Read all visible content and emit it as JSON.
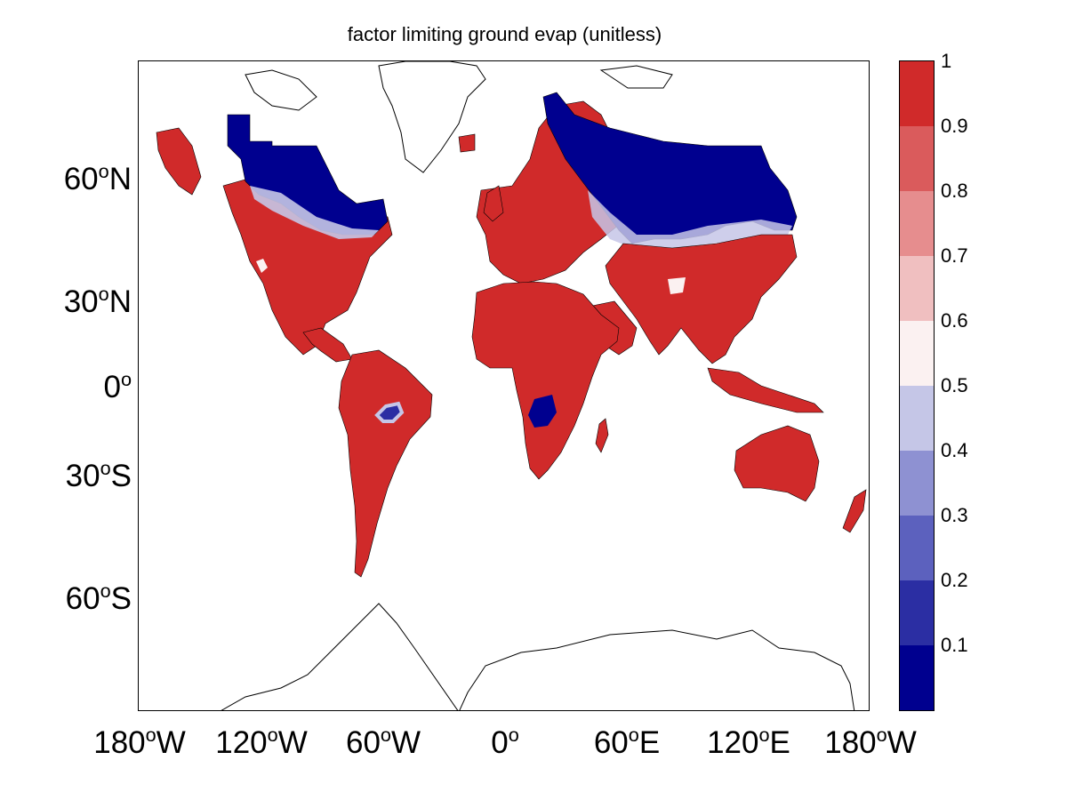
{
  "title": "factor limiting ground evap (unitless)",
  "latitude_labels": [
    {
      "value": 60,
      "deg": "60",
      "hemi": "N"
    },
    {
      "value": 30,
      "deg": "30",
      "hemi": "N"
    },
    {
      "value": 0,
      "deg": "0",
      "hemi": ""
    },
    {
      "value": -30,
      "deg": "30",
      "hemi": "S"
    },
    {
      "value": -60,
      "deg": "60",
      "hemi": "S"
    }
  ],
  "longitude_labels": [
    {
      "value": -180,
      "deg": "180",
      "hemi": "W"
    },
    {
      "value": -120,
      "deg": "120",
      "hemi": "W"
    },
    {
      "value": -60,
      "deg": "60",
      "hemi": "W"
    },
    {
      "value": 0,
      "deg": "0",
      "hemi": ""
    },
    {
      "value": 60,
      "deg": "60",
      "hemi": "E"
    },
    {
      "value": 120,
      "deg": "120",
      "hemi": "E"
    },
    {
      "value": 180,
      "deg": "180",
      "hemi": "W"
    }
  ],
  "colorbar": {
    "range": [
      0,
      1
    ],
    "tick_labels": [
      "1",
      "0.9",
      "0.8",
      "0.7",
      "0.6",
      "0.5",
      "0.4",
      "0.3",
      "0.2",
      "0.1"
    ],
    "levels": [
      {
        "min": 0.0,
        "max": 0.1,
        "color": "#00008f"
      },
      {
        "min": 0.1,
        "max": 0.2,
        "color": "#2b2ea3"
      },
      {
        "min": 0.2,
        "max": 0.3,
        "color": "#5c61be"
      },
      {
        "min": 0.3,
        "max": 0.4,
        "color": "#8e91d2"
      },
      {
        "min": 0.4,
        "max": 0.5,
        "color": "#c5c6e7"
      },
      {
        "min": 0.5,
        "max": 0.6,
        "color": "#fbf1f1"
      },
      {
        "min": 0.6,
        "max": 0.7,
        "color": "#f0bfc0"
      },
      {
        "min": 0.7,
        "max": 0.8,
        "color": "#e68d8e"
      },
      {
        "min": 0.8,
        "max": 0.9,
        "color": "#da5b5c"
      },
      {
        "min": 0.9,
        "max": 1.0,
        "color": "#d02a2a"
      }
    ]
  },
  "map": {
    "projection": "mercator",
    "lon_range": [
      -180,
      180
    ],
    "lat_range": [
      -80,
      80
    ],
    "ocean_color": "#ffffff",
    "coastline_color": "#000000"
  }
}
